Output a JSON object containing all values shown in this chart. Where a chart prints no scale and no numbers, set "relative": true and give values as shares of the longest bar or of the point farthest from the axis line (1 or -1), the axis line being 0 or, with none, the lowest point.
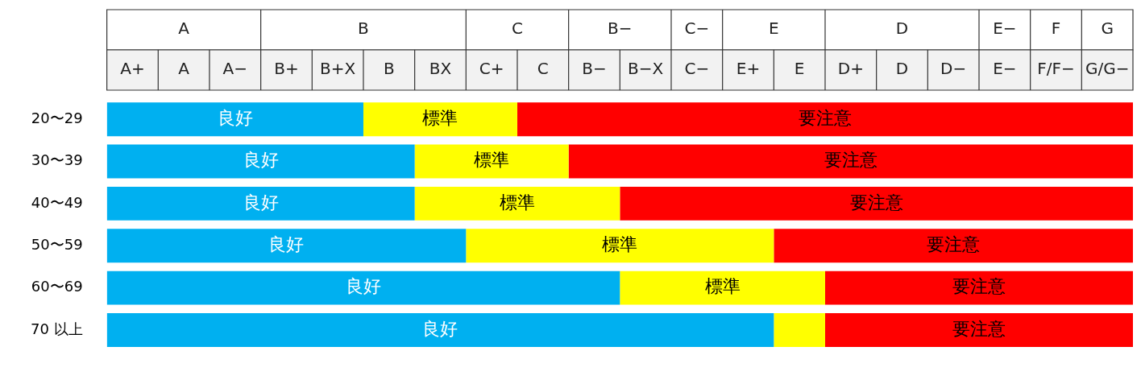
{
  "chart_data": {
    "type": "bar",
    "orientation": "horizontal",
    "stacked": true,
    "relative": true,
    "grid": false,
    "legend": false,
    "categories": [
      "20〜29",
      "30〜39",
      "40〜49",
      "50〜59",
      "60〜69",
      "70 以上"
    ],
    "series": [
      {
        "name": "良好",
        "color": "#00b0f0",
        "values": [
          0.25,
          0.3,
          0.3,
          0.35,
          0.5,
          0.65
        ]
      },
      {
        "name": "標準",
        "color": "#ffff00",
        "values": [
          0.15,
          0.15,
          0.2,
          0.3,
          0.2,
          0.05
        ]
      },
      {
        "name": "要注意",
        "color": "#ff0000",
        "values": [
          0.6,
          0.55,
          0.5,
          0.35,
          0.3,
          0.3
        ]
      }
    ],
    "annotations": [
      "A",
      "B",
      "C",
      "B−",
      "C−",
      "E",
      "D",
      "E−",
      "F",
      "G",
      "A+",
      "A",
      "A−",
      "B+",
      "B+X",
      "B",
      "BX",
      "C+",
      "C",
      "B−",
      "B−X",
      "C−",
      "E+",
      "E",
      "D+",
      "D",
      "D−",
      "E−",
      "F/F−",
      "G/G−"
    ]
  }
}
